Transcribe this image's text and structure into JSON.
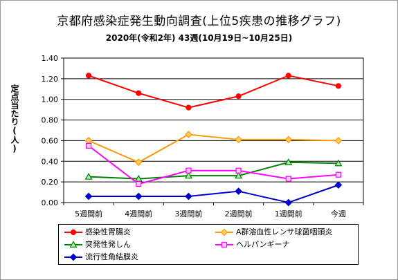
{
  "title": "京都府感染症発生動向調査(上位5疾患の推移グラフ)",
  "subtitle": "2020年(令和2年) 43週(10月19日~10月25日)",
  "chart_data": {
    "type": "line",
    "title": "京都府感染症発生動向調査(上位5疾患の推移グラフ)",
    "subtitle": "2020年(令和2年) 43週(10月19日~10月25日)",
    "xlabel": "",
    "ylabel": "定点当たり(人)",
    "categories": [
      "5週間前",
      "4週間前",
      "3週間前",
      "2週間前",
      "1週間前",
      "今週"
    ],
    "ylim": [
      0,
      1.4
    ],
    "yticks": [
      "0.00",
      "0.20",
      "0.40",
      "0.60",
      "0.80",
      "1.00",
      "1.20",
      "1.40"
    ],
    "grid": true,
    "legend_position": "bottom",
    "series": [
      {
        "name": "感染性胃腸炎",
        "color": "#ff0000",
        "marker": "circle",
        "values": [
          1.23,
          1.06,
          0.92,
          1.03,
          1.23,
          1.13
        ]
      },
      {
        "name": "A群溶血性レンサ球菌咽頭炎",
        "color": "#ff9900",
        "marker": "diamond",
        "values": [
          0.6,
          0.39,
          0.66,
          0.61,
          0.61,
          0.6
        ]
      },
      {
        "name": "突発性発しん",
        "color": "#008000",
        "marker": "triangle",
        "values": [
          0.25,
          0.23,
          0.26,
          0.26,
          0.39,
          0.38
        ]
      },
      {
        "name": "ヘルパンギーナ",
        "color": "#ff00ff",
        "marker": "square",
        "values": [
          0.55,
          0.18,
          0.31,
          0.31,
          0.23,
          0.27
        ]
      },
      {
        "name": "流行性角結膜炎",
        "color": "#0000cc",
        "marker": "diamond",
        "values": [
          0.06,
          0.06,
          0.06,
          0.11,
          0.0,
          0.17
        ]
      }
    ]
  }
}
